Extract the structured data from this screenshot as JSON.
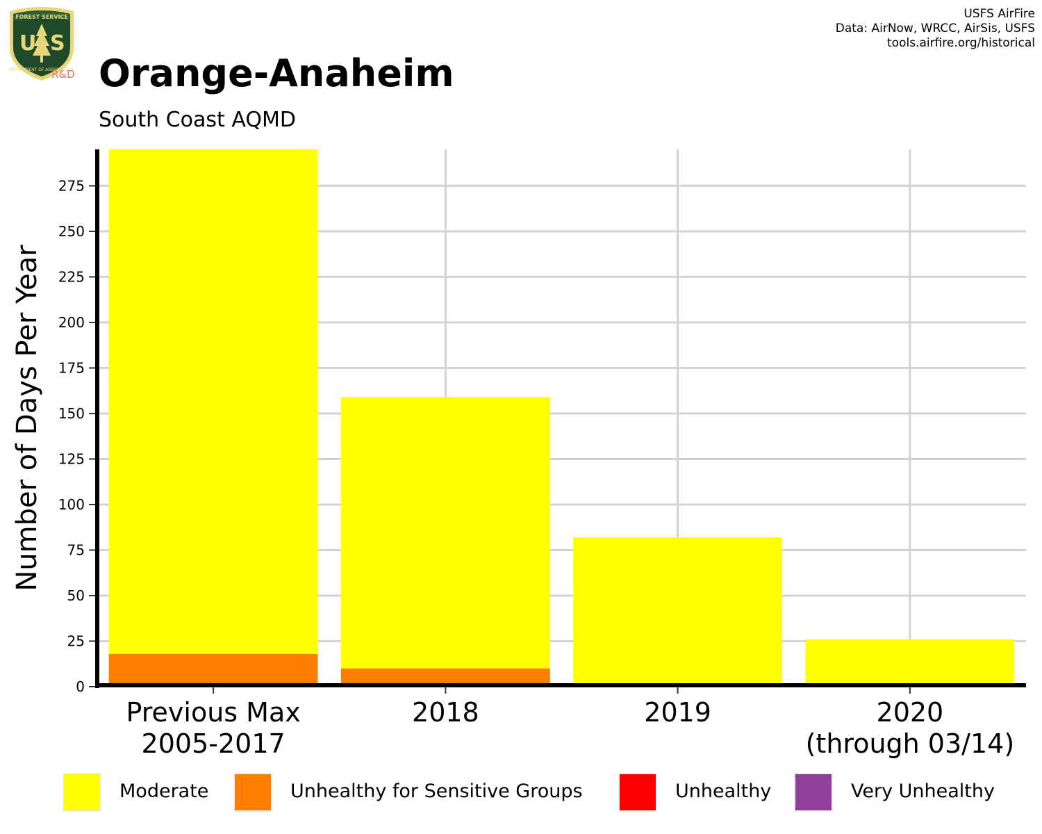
{
  "header": {
    "title": "Orange-Anaheim",
    "subtitle": "South Coast AQMD",
    "logo": {
      "top_text": "FOREST SERVICE",
      "letters": "U S",
      "bottom_text": "DEPARTMENT OF AGRICULTURE",
      "tag": "R&D"
    },
    "credits": [
      "USFS AirFire",
      "Data: AirNow, WRCC, AirSis, USFS",
      "tools.airfire.org/historical"
    ]
  },
  "chart_data": {
    "type": "bar",
    "stacked": true,
    "categories": [
      [
        "Previous Max",
        "2005-2017"
      ],
      [
        "2018"
      ],
      [
        "2019"
      ],
      [
        "2020",
        "(through 03/14)"
      ]
    ],
    "series": [
      {
        "name": "Unhealthy for Sensitive Groups",
        "color": "#FF7E00",
        "values": [
          18,
          10,
          0,
          0
        ]
      },
      {
        "name": "Moderate",
        "color": "#FFFF00",
        "values": [
          277,
          149,
          82,
          26
        ]
      },
      {
        "name": "Unhealthy",
        "color": "#FF0000",
        "values": [
          0,
          0,
          0,
          0
        ]
      },
      {
        "name": "Very Unhealthy",
        "color": "#8F3F97",
        "values": [
          0,
          0,
          0,
          0
        ]
      }
    ],
    "ylabel": "Number of Days Per Year",
    "xlabel": "",
    "ylim": [
      0,
      295
    ],
    "yticks": [
      0,
      25,
      50,
      75,
      100,
      125,
      150,
      175,
      200,
      225,
      250,
      275
    ],
    "grid": true,
    "legend_position": "bottom",
    "legend": [
      {
        "label": "Moderate",
        "color": "#FFFF00"
      },
      {
        "label": "Unhealthy for Sensitive Groups",
        "color": "#FF7E00"
      },
      {
        "label": "Unhealthy",
        "color": "#FF0000"
      },
      {
        "label": "Very Unhealthy",
        "color": "#8F3F97"
      }
    ]
  }
}
